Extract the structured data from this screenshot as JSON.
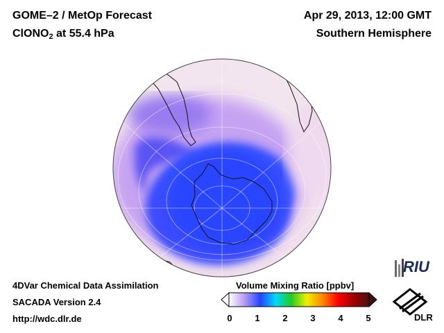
{
  "header": {
    "title_line1": "GOME–2 / MetOp Forecast",
    "title_line2_prefix": "ClONO",
    "title_line2_sub": "2",
    "title_line2_suffix": " at 55.4 hPa",
    "date": "Apr 29, 2013, 12:00 GMT",
    "region": "Southern Hemisphere"
  },
  "footer": {
    "line1": "4DVar Chemical Data Assimilation",
    "line2": "SACADA Version 2.4",
    "line3": "http://wdc.dlr.de"
  },
  "colorbar": {
    "title": "Volume Mixing Ratio [ppbv]",
    "ticks": [
      "0",
      "1",
      "2",
      "3",
      "4",
      "5"
    ],
    "colors": [
      "#ffffff",
      "#b89cf0",
      "#2244ff",
      "#00d8ff",
      "#22cc22",
      "#f0f000",
      "#ff8800",
      "#ff0000",
      "#a00000",
      "#501010"
    ]
  },
  "logos": {
    "riu": "RIU",
    "dlr": "DLR"
  },
  "colors": {
    "low": "#3a4cff",
    "mid": "#c9a7ef",
    "high": "#f2e6ea"
  }
}
